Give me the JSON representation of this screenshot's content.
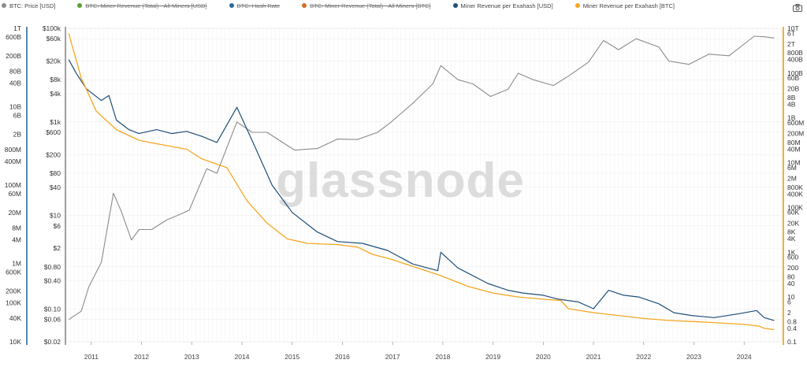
{
  "legend": [
    {
      "label": "BTC: Price [USD]",
      "color": "#8c8c8c",
      "active": true
    },
    {
      "label": "BTC: Miner Revenue (Total) - All Miners [USD]",
      "color": "#5aa02c",
      "active": false
    },
    {
      "label": "BTC: Hash Rate",
      "color": "#2d6a9a",
      "active": false
    },
    {
      "label": "BTC: Miner Revenue (Total) - All Miners [BTC]",
      "color": "#d0702a",
      "active": false
    },
    {
      "label": "Miner Revenue per Exahash [USD]",
      "color": "#1f4e79",
      "active": true
    },
    {
      "label": "Miner Revenue per Exahash [BTC]",
      "color": "#f5a623",
      "active": true
    }
  ],
  "watermark": "glassnode",
  "icons": {
    "export": "camera-icon"
  },
  "colors": {
    "price": "#8c8c8c",
    "usd_line": "#1f4e79",
    "btc_line": "#f5a623",
    "grid": "#ececec"
  },
  "chart_data": {
    "type": "line",
    "x_ticks": [
      "2011",
      "2012",
      "2013",
      "2014",
      "2015",
      "2016",
      "2017",
      "2018",
      "2019",
      "2020",
      "2021",
      "2022",
      "2023",
      "2024"
    ],
    "axes": {
      "hashrate_left": {
        "scale": "log",
        "ticks": [
          "1T",
          "600B",
          "200B",
          "80B",
          "40B",
          "10B",
          "6B",
          "2B",
          "800M",
          "400M",
          "100M",
          "60M",
          "20M",
          "8M",
          "4M",
          "1M",
          "600K",
          "200K",
          "100K",
          "40K",
          "10K"
        ]
      },
      "price_left": {
        "scale": "log",
        "ticks": [
          "$100k",
          "$60k",
          "$20k",
          "$8k",
          "$4k",
          "$1k",
          "$600",
          "$200",
          "$80",
          "$40",
          "$10",
          "$6",
          "$2",
          "$0.80",
          "$0.40",
          "$0.10",
          "$0.06",
          "$0.02"
        ]
      },
      "revenue_right": {
        "scale": "log",
        "ticks": [
          "10T",
          "6T",
          "2T",
          "800B",
          "400B",
          "100B",
          "60B",
          "20B",
          "8B",
          "4B",
          "1B",
          "600M",
          "200M",
          "80M",
          "40M",
          "10M",
          "6M",
          "2M",
          "800K",
          "400K",
          "100K",
          "60K",
          "20K",
          "8K",
          "4K",
          "1K",
          "600",
          "200",
          "80",
          "40",
          "10",
          "6",
          "2",
          "0.8",
          "0.4",
          "0.1"
        ]
      }
    },
    "series": [
      {
        "name": "BTC: Price [USD]",
        "axis": "price_left",
        "x": [
          2010.55,
          2010.8,
          2010.95,
          2011.2,
          2011.44,
          2011.6,
          2011.8,
          2011.95,
          2012.2,
          2012.5,
          2012.8,
          2012.95,
          2013.3,
          2013.5,
          2013.9,
          2014.2,
          2014.5,
          2014.8,
          2015.05,
          2015.5,
          2015.9,
          2016.3,
          2016.7,
          2016.95,
          2017.4,
          2017.8,
          2017.96,
          2018.3,
          2018.6,
          2018.95,
          2019.3,
          2019.5,
          2019.8,
          2020.2,
          2020.5,
          2020.9,
          2021.2,
          2021.5,
          2021.85,
          2022.3,
          2022.5,
          2022.9,
          2023.3,
          2023.7,
          2024.2,
          2024.4,
          2024.6
        ],
        "values": [
          0.06,
          0.09,
          0.3,
          1,
          30,
          12,
          3,
          5,
          5,
          8,
          11,
          13,
          100,
          80,
          1000,
          600,
          600,
          370,
          250,
          270,
          430,
          420,
          600,
          950,
          2500,
          6500,
          16000,
          8000,
          6500,
          3500,
          5000,
          11000,
          8000,
          6000,
          9500,
          19000,
          55000,
          35000,
          60000,
          40000,
          20000,
          17000,
          28000,
          26000,
          68000,
          66000,
          62000
        ]
      },
      {
        "name": "Miner Revenue per Exahash [USD]",
        "axis": "revenue_right",
        "x": [
          2010.55,
          2010.7,
          2010.9,
          2011.2,
          2011.35,
          2011.5,
          2011.75,
          2011.95,
          2012.3,
          2012.6,
          2012.9,
          2013.2,
          2013.5,
          2013.9,
          2014.2,
          2014.6,
          2015.0,
          2015.5,
          2015.9,
          2016.4,
          2016.9,
          2017.4,
          2017.9,
          2017.96,
          2018.3,
          2018.9,
          2019.3,
          2019.6,
          2020.0,
          2020.3,
          2020.7,
          2021.0,
          2021.3,
          2021.6,
          2021.9,
          2022.3,
          2022.6,
          2022.95,
          2023.4,
          2023.9,
          2024.25,
          2024.4,
          2024.6
        ],
        "values": [
          400000000000,
          100000000000,
          20000000000,
          6000000000,
          10000000000,
          800000000,
          300000000,
          200000000,
          300000000,
          200000000,
          250000000,
          150000000,
          80000000,
          3000000000,
          100000000,
          1000000,
          60000,
          8000,
          3000,
          2500,
          1200,
          300,
          150,
          1000,
          200,
          40,
          20,
          15,
          12,
          8,
          6,
          3,
          20,
          12,
          10,
          5,
          2,
          1.5,
          1.2,
          1.8,
          2.5,
          1.2,
          0.9
        ]
      },
      {
        "name": "Miner Revenue per Exahash [BTC]",
        "axis": "revenue_right",
        "x": [
          2010.55,
          2010.8,
          2011.1,
          2011.5,
          2011.95,
          2012.3,
          2012.9,
          2013.2,
          2013.7,
          2014.1,
          2014.5,
          2014.9,
          2015.3,
          2015.9,
          2016.3,
          2016.6,
          2016.95,
          2017.5,
          2017.96,
          2018.5,
          2019.0,
          2019.5,
          2020.0,
          2020.35,
          2020.5,
          2021.0,
          2021.5,
          2022.0,
          2022.5,
          2023.0,
          2023.5,
          2024.0,
          2024.3,
          2024.4,
          2024.6
        ],
        "values": [
          6000000000000,
          60000000000,
          2000000000,
          300000000,
          100000000,
          70000000,
          40000000,
          15000000,
          6000000,
          200000,
          20000,
          4000,
          2500,
          2200,
          1700,
          800,
          500,
          200,
          90,
          30,
          15,
          10,
          8,
          7,
          3,
          2,
          1.5,
          1.1,
          0.9,
          0.8,
          0.7,
          0.6,
          0.5,
          0.4,
          0.35
        ]
      }
    ]
  }
}
